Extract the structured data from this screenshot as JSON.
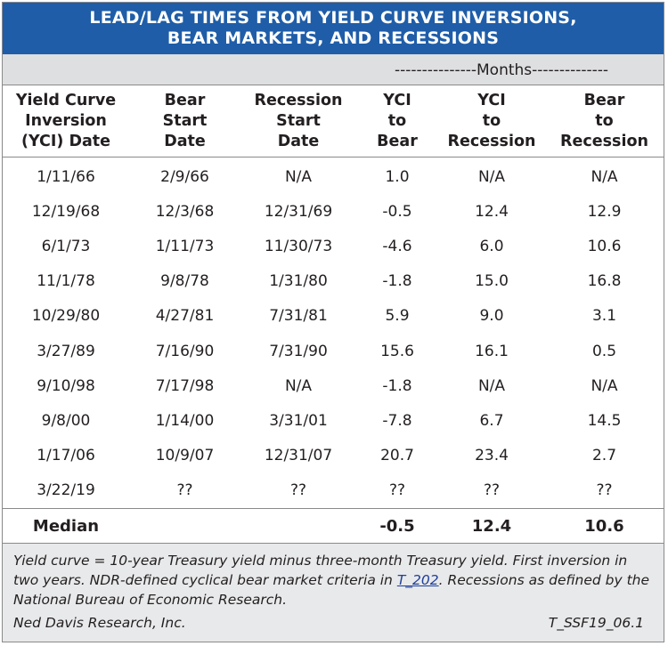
{
  "title": {
    "line1": "LEAD/LAG TIMES FROM YIELD CURVE INVERSIONS,",
    "line2": "BEAR MARKETS, AND RECESSIONS"
  },
  "months_label": "---------------Months--------------",
  "headers": [
    [
      "Yield Curve",
      "Inversion",
      "(YCI) Date"
    ],
    [
      "Bear",
      "Start",
      "Date"
    ],
    [
      "Recession",
      "Start",
      "Date"
    ],
    [
      "YCI",
      "to",
      "Bear"
    ],
    [
      "YCI",
      "to",
      "Recession"
    ],
    [
      "Bear",
      "to",
      "Recession"
    ]
  ],
  "rows": [
    [
      "1/11/66",
      "2/9/66",
      "N/A",
      "1.0",
      "N/A",
      "N/A"
    ],
    [
      "12/19/68",
      "12/3/68",
      "12/31/69",
      "-0.5",
      "12.4",
      "12.9"
    ],
    [
      "6/1/73",
      "1/11/73",
      "11/30/73",
      "-4.6",
      "6.0",
      "10.6"
    ],
    [
      "11/1/78",
      "9/8/78",
      "1/31/80",
      "-1.8",
      "15.0",
      "16.8"
    ],
    [
      "10/29/80",
      "4/27/81",
      "7/31/81",
      "5.9",
      "9.0",
      "3.1"
    ],
    [
      "3/27/89",
      "7/16/90",
      "7/31/90",
      "15.6",
      "16.1",
      "0.5"
    ],
    [
      "9/10/98",
      "7/17/98",
      "N/A",
      "-1.8",
      "N/A",
      "N/A"
    ],
    [
      "9/8/00",
      "1/14/00",
      "3/31/01",
      "-7.8",
      "6.7",
      "14.5"
    ],
    [
      "1/17/06",
      "10/9/07",
      "12/31/07",
      "20.7",
      "23.4",
      "2.7"
    ],
    [
      "3/22/19",
      "??",
      "??",
      "??",
      "??",
      "??"
    ]
  ],
  "median": {
    "label": "Median",
    "yci_to_bear": "-0.5",
    "yci_to_recession": "12.4",
    "bear_to_recession": "10.6"
  },
  "footnote": {
    "part1": "Yield curve = 10-year Treasury yield minus three-month Treasury yield. First inversion in two years.  NDR-defined cyclical bear market criteria in ",
    "link": "T_202",
    "part2": ".  Recessions as defined by the National Bureau of Economic Research.",
    "source": "Ned Davis Research, Inc.",
    "code": "T_SSF19_06.1"
  },
  "colors": {
    "title_bg": "#1f5da8",
    "months_bg": "#dedfe1",
    "footnote_bg": "#e8e9ea",
    "link": "#1f3f99"
  }
}
